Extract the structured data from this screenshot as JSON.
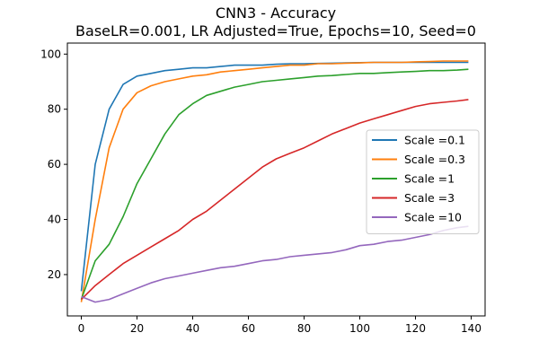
{
  "chart_data": {
    "type": "line",
    "title": "CNN3 - Accuracy",
    "subtitle": "BaseLR=0.001, LR Adjusted=True, Epochs=10, Seed=0",
    "xlabel": "",
    "ylabel": "",
    "xlim": [
      -5,
      145
    ],
    "ylim": [
      5,
      104
    ],
    "xticks": [
      0,
      20,
      40,
      60,
      80,
      100,
      120,
      140
    ],
    "yticks": [
      20,
      40,
      60,
      80,
      100
    ],
    "grid": false,
    "legend_position": "center-right",
    "x": [
      0,
      5,
      10,
      15,
      20,
      25,
      30,
      35,
      40,
      45,
      50,
      55,
      60,
      65,
      70,
      75,
      80,
      85,
      90,
      95,
      100,
      105,
      110,
      115,
      120,
      125,
      130,
      135,
      139
    ],
    "series": [
      {
        "name": "Scale =0.1",
        "color": "#1f77b4",
        "values": [
          14,
          60,
          80,
          89,
          92,
          93,
          94,
          94.5,
          95,
          95,
          95.5,
          96,
          96,
          96,
          96.3,
          96.5,
          96.5,
          96.6,
          96.7,
          96.8,
          96.9,
          97,
          97,
          97,
          97,
          97,
          97,
          97,
          97
        ]
      },
      {
        "name": "Scale =0.3",
        "color": "#ff7f0e",
        "values": [
          10,
          40,
          66,
          80,
          86,
          88.5,
          90,
          91,
          92,
          92.5,
          93.5,
          94,
          94.5,
          95,
          95.5,
          96,
          96,
          96.5,
          96.5,
          96.7,
          96.8,
          97,
          97,
          97,
          97.2,
          97.3,
          97.5,
          97.5,
          97.5
        ]
      },
      {
        "name": "Scale =1",
        "color": "#2ca02c",
        "values": [
          11,
          25,
          31,
          41,
          53,
          62,
          71,
          78,
          82,
          85,
          86.5,
          88,
          89,
          90,
          90.5,
          91,
          91.5,
          92,
          92.2,
          92.6,
          93,
          93,
          93.3,
          93.5,
          93.7,
          94,
          94,
          94.2,
          94.5
        ]
      },
      {
        "name": "Scale =3",
        "color": "#d62728",
        "values": [
          11,
          16,
          20,
          24,
          27,
          30,
          33,
          36,
          40,
          43,
          47,
          51,
          55,
          59,
          62,
          64,
          66,
          68.5,
          71,
          73,
          75,
          76.5,
          78,
          79.5,
          81,
          82,
          82.5,
          83,
          83.5
        ]
      },
      {
        "name": "Scale =10",
        "color": "#9467bd",
        "values": [
          12,
          10,
          11,
          13,
          15,
          17,
          18.5,
          19.5,
          20.5,
          21.5,
          22.5,
          23,
          24,
          25,
          25.5,
          26.5,
          27,
          27.5,
          28,
          29,
          30.5,
          31,
          32,
          32.5,
          33.5,
          34.5,
          36,
          37,
          37.5
        ]
      }
    ]
  }
}
